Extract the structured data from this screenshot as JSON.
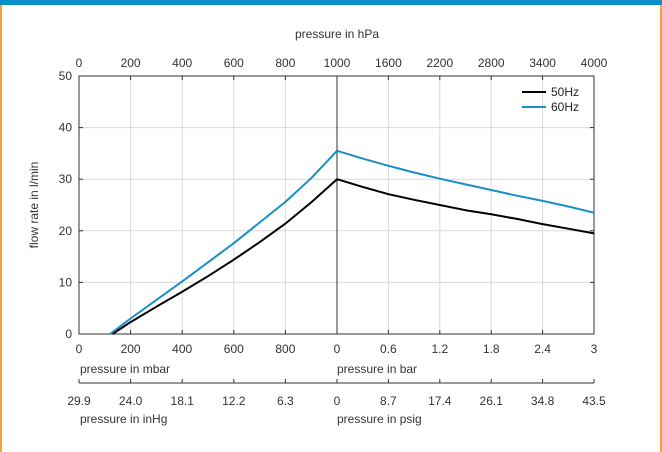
{
  "colors": {
    "accent_top": "#0c8fc8",
    "border_side": "#f2a33a",
    "grid": "#d9d9d9",
    "axis": "#333333"
  },
  "chart_data": {
    "type": "line",
    "title": "",
    "ylabel": "flow rate in l/min",
    "ylim": [
      0,
      50
    ],
    "yticks": [
      "0",
      "10",
      "20",
      "30",
      "40",
      "50"
    ],
    "grid": true,
    "legend_position": "top-right",
    "top_axis": {
      "label": "pressure in hPa",
      "left_ticks": [
        "0",
        "200",
        "400",
        "600",
        "800",
        "1000"
      ],
      "right_ticks": [
        "1600",
        "2200",
        "2800",
        "3400",
        "4000"
      ]
    },
    "bottom_axis": {
      "left_label": "pressure in mbar",
      "left_ticks": [
        "0",
        "200",
        "400",
        "600",
        "800",
        "0"
      ],
      "right_label": "pressure in bar",
      "right_ticks": [
        "0.6",
        "1.2",
        "1.8",
        "2.4",
        "3"
      ]
    },
    "lower_axis": {
      "left_label": "pressure in inHg",
      "left_ticks": [
        "29.9",
        "24.0",
        "18.1",
        "12.2",
        "6.3",
        "0"
      ],
      "right_label": "pressure in psig",
      "right_ticks": [
        "8.7",
        "17.4",
        "26.1",
        "34.8",
        "43.5"
      ]
    },
    "panels": [
      {
        "name": "vacuum",
        "x_unit": "mbar",
        "xlim": [
          0,
          1000
        ],
        "series": [
          {
            "name": "50Hz",
            "color": "#000000",
            "x": [
              130,
              200,
              300,
              400,
              500,
              600,
              700,
              800,
              900,
              1000
            ],
            "y": [
              0,
              2.3,
              5.3,
              8.2,
              11.2,
              14.4,
              17.8,
              21.4,
              25.5,
              30
            ]
          },
          {
            "name": "60Hz",
            "color": "#1a8fc4",
            "x": [
              120,
              200,
              300,
              400,
              500,
              600,
              700,
              800,
              900,
              1000
            ],
            "y": [
              0,
              3.0,
              6.6,
              10.2,
              13.9,
              17.6,
              21.6,
              25.6,
              30.2,
              35.5
            ]
          }
        ]
      },
      {
        "name": "pressure",
        "x_unit": "bar",
        "xlim": [
          0,
          3
        ],
        "series": [
          {
            "name": "50Hz",
            "color": "#000000",
            "x": [
              0,
              0.3,
              0.6,
              0.9,
              1.2,
              1.5,
              1.8,
              2.1,
              2.4,
              2.7,
              3.0
            ],
            "y": [
              30,
              28.5,
              27.1,
              26.0,
              25.0,
              24.0,
              23.2,
              22.3,
              21.3,
              20.4,
              19.5
            ]
          },
          {
            "name": "60Hz",
            "color": "#1a8fc4",
            "x": [
              0,
              0.3,
              0.6,
              0.9,
              1.2,
              1.5,
              1.8,
              2.1,
              2.4,
              2.7,
              3.0
            ],
            "y": [
              35.5,
              34.0,
              32.6,
              31.3,
              30.1,
              29.0,
              27.9,
              26.8,
              25.8,
              24.7,
              23.5
            ]
          }
        ]
      }
    ],
    "legend": [
      "50Hz",
      "60Hz"
    ]
  }
}
